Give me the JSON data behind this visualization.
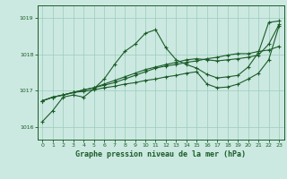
{
  "xlabel": "Graphe pression niveau de la mer (hPa)",
  "ylim": [
    1015.65,
    1019.35
  ],
  "xlim": [
    -0.5,
    23.5
  ],
  "yticks": [
    1016,
    1017,
    1018,
    1019
  ],
  "xticks": [
    0,
    1,
    2,
    3,
    4,
    5,
    6,
    7,
    8,
    9,
    10,
    11,
    12,
    13,
    14,
    15,
    16,
    17,
    18,
    19,
    20,
    21,
    22,
    23
  ],
  "background_color": "#cce9e1",
  "grid_color": "#99ccbb",
  "line_color": "#1a5c28",
  "series": [
    [
      1016.15,
      1016.45,
      1016.82,
      1016.88,
      1016.82,
      1017.05,
      1017.32,
      1017.72,
      1018.08,
      1018.28,
      1018.58,
      1018.68,
      1018.18,
      1017.85,
      1017.72,
      1017.62,
      1017.45,
      1017.35,
      1017.38,
      1017.42,
      1017.65,
      1018.05,
      1018.88,
      1018.92
    ],
    [
      1016.72,
      1016.82,
      1016.88,
      1016.95,
      1016.98,
      1017.02,
      1017.08,
      1017.12,
      1017.18,
      1017.22,
      1017.28,
      1017.32,
      1017.38,
      1017.42,
      1017.48,
      1017.52,
      1017.18,
      1017.08,
      1017.1,
      1017.18,
      1017.32,
      1017.48,
      1017.85,
      1018.78
    ],
    [
      1016.72,
      1016.82,
      1016.88,
      1016.95,
      1017.02,
      1017.08,
      1017.15,
      1017.22,
      1017.32,
      1017.42,
      1017.52,
      1017.62,
      1017.68,
      1017.72,
      1017.78,
      1017.82,
      1017.88,
      1017.92,
      1017.98,
      1018.02,
      1018.02,
      1018.08,
      1018.12,
      1018.22
    ],
    [
      1016.72,
      1016.82,
      1016.88,
      1016.95,
      1017.02,
      1017.08,
      1017.18,
      1017.28,
      1017.38,
      1017.48,
      1017.58,
      1017.65,
      1017.72,
      1017.78,
      1017.85,
      1017.88,
      1017.85,
      1017.82,
      1017.85,
      1017.88,
      1017.92,
      1017.98,
      1018.28,
      1018.82
    ]
  ]
}
